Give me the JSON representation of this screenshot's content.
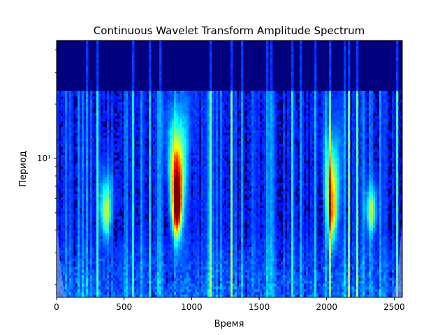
{
  "chart_data": {
    "type": "heatmap",
    "title": "Continuous Wavelet Transform Amplitude Spectrum",
    "xlabel": "Время",
    "ylabel": "Период",
    "xlim": [
      0,
      2560
    ],
    "ylim": [
      1.7,
      45
    ],
    "yscale": "log",
    "x_ticks": [
      0,
      500,
      1000,
      1500,
      2000,
      2500
    ],
    "x_tick_labels": [
      "0",
      "500",
      "1000",
      "1500",
      "2000",
      "2500"
    ],
    "y_major_ticks": [
      10
    ],
    "y_major_tick_labels": [
      "10¹"
    ],
    "y_minor_ticks": [
      2,
      3,
      4,
      5,
      6,
      7,
      8,
      9,
      20,
      30,
      40
    ],
    "colormap": "jet",
    "grid": false,
    "hotspots": [
      {
        "time": 893,
        "period_low": 3.6,
        "period_high": 14,
        "peak_period": 5.5,
        "strength": 1.0
      },
      {
        "time": 2040,
        "period_low": 3.4,
        "period_high": 12,
        "peak_period": 5.2,
        "strength": 0.6
      },
      {
        "time": 365,
        "period_low": 3.6,
        "period_high": 8,
        "peak_period": 5.0,
        "strength": 0.42
      },
      {
        "time": 2330,
        "period_low": 3.8,
        "period_high": 7,
        "peak_period": 5.0,
        "strength": 0.35
      }
    ],
    "cone_of_influence": {
      "color": "#8fa8d8"
    }
  }
}
